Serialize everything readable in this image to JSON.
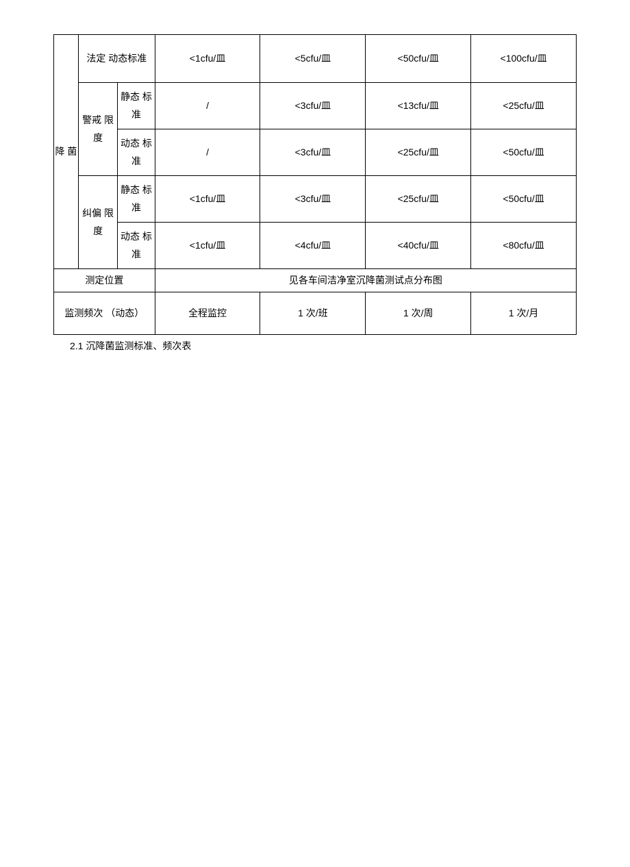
{
  "table": {
    "row_header": "降 菌",
    "legal_standard": {
      "label": "法定 动态标准",
      "values": [
        "<1cfu/皿",
        "<5cfu/皿",
        "<50cfu/皿",
        "<100cfu/皿"
      ]
    },
    "alert_limit": {
      "label": "警戒 限度",
      "static_label": "静态 标准",
      "static_values": [
        "/",
        "<3cfu/皿",
        "<13cfu/皿",
        "<25cfu/皿"
      ],
      "dynamic_label": "动态 标准",
      "dynamic_values": [
        "/",
        "<3cfu/皿",
        "<25cfu/皿",
        "<50cfu/皿"
      ]
    },
    "correction_limit": {
      "label": "纠偏 限度",
      "static_label": "静态 标准",
      "static_values": [
        "<1cfu/皿",
        "<3cfu/皿",
        "<25cfu/皿",
        "<50cfu/皿"
      ],
      "dynamic_label": "动态 标准",
      "dynamic_values": [
        "<1cfu/皿",
        "<4cfu/皿",
        "<40cfu/皿",
        "<80cfu/皿"
      ]
    },
    "position": {
      "label": "测定位置",
      "value": "见各车间洁净室沉降菌测试点分布图"
    },
    "frequency": {
      "label": "监测频次 （动态）",
      "values": [
        "全程监控",
        "1 次/班",
        "1 次/周",
        "1 次/月"
      ]
    },
    "border_color": "#000000",
    "background_color": "#ffffff",
    "font_size": 14,
    "text_color": "#000000"
  },
  "caption": "2.1 沉降菌监测标准、频次表"
}
